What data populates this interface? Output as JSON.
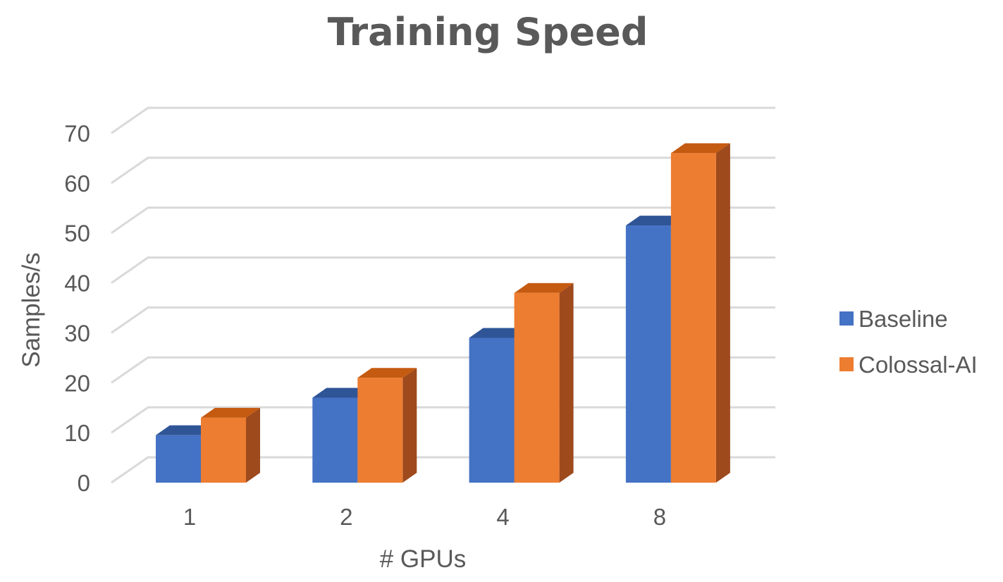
{
  "chart_data": {
    "type": "bar",
    "title": "Training Speed",
    "xlabel": "# GPUs",
    "ylabel": "Samples/s",
    "categories": [
      "1",
      "2",
      "4",
      "8"
    ],
    "series": [
      {
        "name": "Baseline",
        "values": [
          9.5,
          17,
          29,
          51.5
        ],
        "color": "#4472c4",
        "top_color": "#2f5597",
        "side_color": "#2f5597"
      },
      {
        "name": "Colossal-AI",
        "values": [
          13,
          21,
          38,
          66
        ],
        "color": "#ed7d31",
        "top_color": "#c55a11",
        "side_color": "#9e4a1d"
      }
    ],
    "ylim": [
      0,
      70
    ],
    "yticks": [
      "0",
      "10",
      "20",
      "30",
      "40",
      "50",
      "60",
      "70"
    ],
    "grid": true,
    "legend_position": "right"
  }
}
